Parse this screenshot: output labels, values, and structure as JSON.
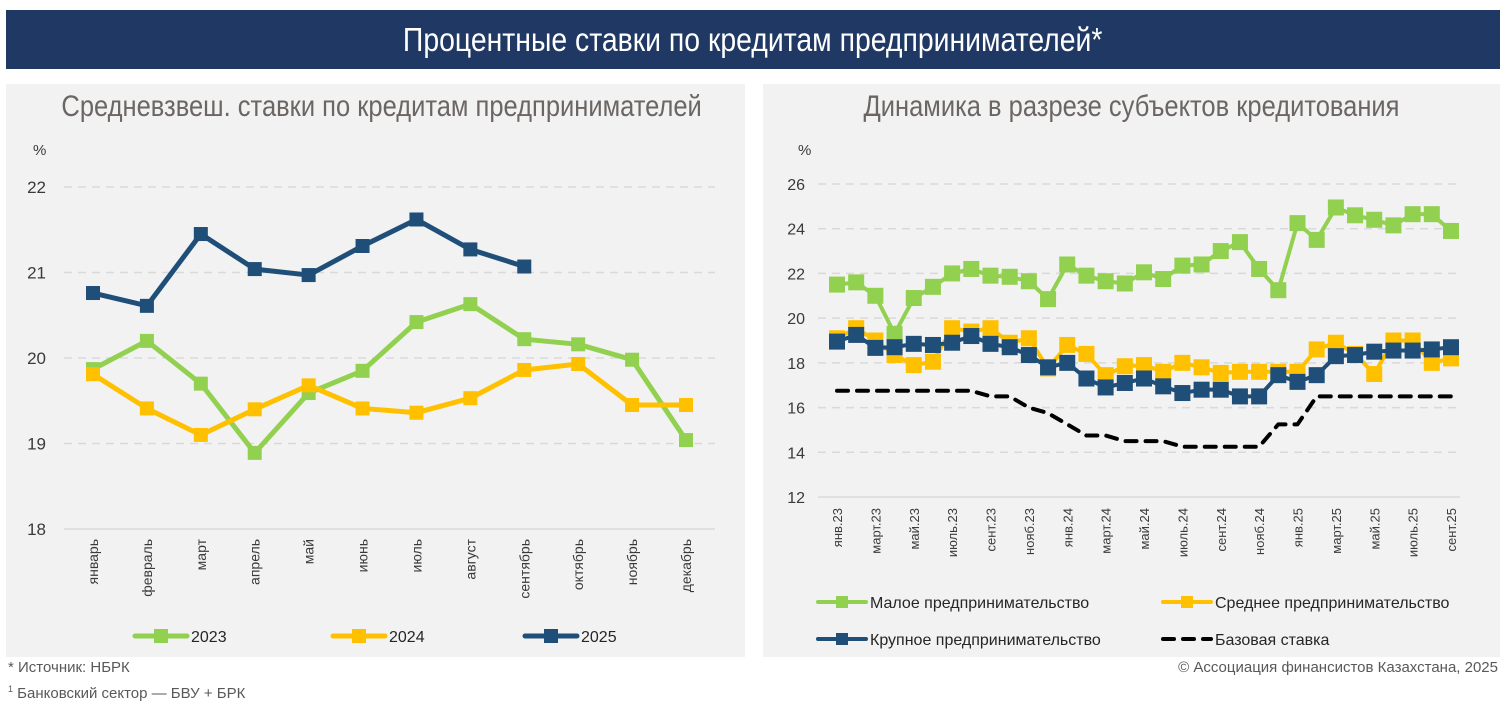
{
  "header": {
    "title": "Процентные ставки по кредитам предпринимателей*"
  },
  "footer": {
    "source": "* Источник: НБРК",
    "note_marker": "1",
    "note": " Банковский сектор — БВУ + БРК",
    "copyright": "© Ассоциация финансистов Казахстана, 2025"
  },
  "colors": {
    "green": "#92d050",
    "yellow": "#ffc000",
    "blue": "#1f4e79",
    "black": "#000000",
    "header_bg": "#203864",
    "panel_bg": "#f2f2f2"
  },
  "chart_data": [
    {
      "type": "line",
      "title": "Средневзвеш. ставки по кредитам предпринимателей",
      "ylabel": "%",
      "xlabel": "",
      "ylim": [
        18,
        22
      ],
      "yticks": [
        18,
        19,
        20,
        21,
        22
      ],
      "grid": true,
      "legend": "bottom",
      "categories": [
        "январь",
        "февраль",
        "март",
        "апрель",
        "май",
        "июнь",
        "июль",
        "август",
        "сентябрь",
        "октябрь",
        "ноябрь",
        "декабрь"
      ],
      "series": [
        {
          "name": "2023",
          "color": "#92d050",
          "marker": "square",
          "values": [
            19.87,
            20.2,
            19.7,
            18.89,
            19.59,
            19.85,
            20.42,
            20.63,
            20.22,
            20.16,
            19.98,
            19.04
          ]
        },
        {
          "name": "2024",
          "color": "#ffc000",
          "marker": "square",
          "values": [
            19.81,
            19.41,
            19.1,
            19.4,
            19.68,
            19.41,
            19.36,
            19.53,
            19.86,
            19.93,
            19.45,
            19.45
          ]
        },
        {
          "name": "2025",
          "color": "#1f4e79",
          "marker": "square",
          "values": [
            20.76,
            20.61,
            21.45,
            21.04,
            20.97,
            21.31,
            21.62,
            21.27,
            21.07,
            null,
            null,
            null
          ]
        }
      ]
    },
    {
      "type": "line",
      "title": "Динамика в разрезе субъектов кредитования",
      "ylabel": "%",
      "xlabel": "",
      "ylim": [
        12,
        26
      ],
      "yticks": [
        12,
        14,
        16,
        18,
        20,
        22,
        24,
        26
      ],
      "grid": true,
      "legend": "bottom",
      "x": [
        "янв.23",
        "февр.23",
        "март.23",
        "апр.23",
        "май.23",
        "июнь.23",
        "июль.23",
        "авг.23",
        "сент.23",
        "окт.23",
        "нояб.23",
        "дек.23",
        "янв.24",
        "февр.24",
        "март.24",
        "апр.24",
        "май.24",
        "июнь.24",
        "июль.24",
        "авг.24",
        "сент.24",
        "окт.24",
        "нояб.24",
        "дек.24",
        "янв.25",
        "февр.25",
        "март.25",
        "апр.25",
        "май.25",
        "июнь.25",
        "июль.25",
        "авг.25",
        "сент.25"
      ],
      "tick_labels": [
        "янв.23",
        "март.23",
        "май.23",
        "июль.23",
        "сент.23",
        "нояб.23",
        "янв.24",
        "март.24",
        "май.24",
        "июль.24",
        "сент.24",
        "нояб.24",
        "янв.25",
        "март.25",
        "май.25",
        "июль.25",
        "сент.25"
      ],
      "series": [
        {
          "name": "Малое предпринимательство",
          "color": "#92d050",
          "marker": "square",
          "style": "solid",
          "values": [
            21.5,
            21.6,
            21.0,
            19.3,
            20.9,
            21.4,
            22.0,
            22.2,
            21.9,
            21.85,
            21.65,
            20.85,
            22.4,
            21.9,
            21.65,
            21.55,
            22.05,
            21.75,
            22.35,
            22.4,
            23.0,
            23.4,
            22.2,
            21.25,
            24.25,
            23.5,
            24.95,
            24.6,
            24.4,
            24.15,
            24.65,
            24.65,
            23.9
          ]
        },
        {
          "name": "Среднее предпринимательство",
          "color": "#ffc000",
          "marker": "square",
          "style": "solid",
          "values": [
            19.1,
            19.55,
            19.0,
            18.35,
            17.9,
            18.05,
            19.55,
            19.4,
            19.55,
            18.9,
            19.1,
            17.75,
            18.8,
            18.4,
            17.45,
            17.85,
            17.9,
            17.6,
            18.0,
            17.8,
            17.55,
            17.6,
            17.6,
            17.6,
            17.6,
            18.6,
            18.9,
            18.4,
            17.5,
            19.0,
            19.0,
            18.0,
            18.2
          ]
        },
        {
          "name": "Крупное предпринимательство",
          "color": "#1f4e79",
          "marker": "square",
          "style": "solid",
          "values": [
            18.95,
            19.25,
            18.67,
            18.7,
            18.85,
            18.8,
            18.9,
            19.2,
            18.85,
            18.7,
            18.35,
            17.8,
            18.0,
            17.3,
            16.9,
            17.1,
            17.3,
            16.95,
            16.65,
            16.8,
            16.8,
            16.5,
            16.5,
            17.45,
            17.15,
            17.45,
            18.3,
            18.35,
            18.5,
            18.55,
            18.55,
            18.6,
            18.7
          ]
        },
        {
          "name": "Базовая ставка",
          "color": "#000000",
          "marker": "none",
          "style": "dashed",
          "values": [
            16.75,
            16.75,
            16.75,
            16.75,
            16.75,
            16.75,
            16.75,
            16.75,
            16.5,
            16.5,
            16.0,
            15.75,
            15.25,
            14.75,
            14.75,
            14.5,
            14.5,
            14.5,
            14.25,
            14.25,
            14.25,
            14.25,
            14.25,
            15.25,
            15.25,
            16.5,
            16.5,
            16.5,
            16.5,
            16.5,
            16.5,
            16.5,
            16.5
          ]
        }
      ]
    }
  ]
}
